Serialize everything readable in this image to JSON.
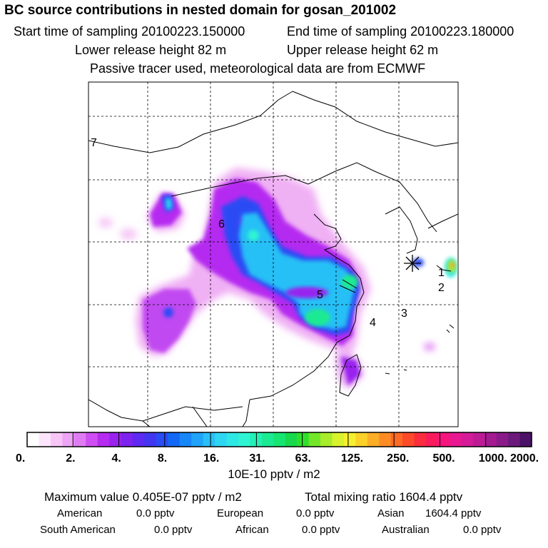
{
  "header": {
    "title": "BC  source contributions in nested domain for gosan_201002",
    "start_time_label": "Start time of sampling 20100223.150000",
    "end_time_label": "End time of sampling 20100223.180000",
    "lower_release_label": "Lower release height   82 m",
    "upper_release_label": "Upper release height   62 m",
    "tracer_note": "Passive tracer used, meteorological data are from ECMWF"
  },
  "map": {
    "region_labels": [
      "1",
      "2",
      "3",
      "4",
      "5",
      "6",
      "7"
    ],
    "receptor_marker": "asterisk-icon"
  },
  "colorbar": {
    "tick_labels": [
      "0.",
      "2.",
      "4.",
      "8.",
      "16.",
      "31.",
      "63.",
      "125.",
      "250.",
      "500.",
      "1000.",
      "2000."
    ],
    "colors": [
      "#ffffff",
      "#fde6fc",
      "#f7c6f6",
      "#eea5f5",
      "#e07cf3",
      "#cf4ef2",
      "#b52cf0",
      "#9922ee",
      "#7e22ef",
      "#5e29f2",
      "#4336f1",
      "#2a4cf4",
      "#1368f5",
      "#1786f8",
      "#20a3f8",
      "#28bff6",
      "#2ed6f2",
      "#2ee8e5",
      "#2ff4d3",
      "#25f0b5",
      "#1bea92",
      "#17e572",
      "#18d84c",
      "#30df2c",
      "#73e62a",
      "#a9ec2b",
      "#d8f22e",
      "#f6ef2e",
      "#fbd129",
      "#fcae26",
      "#fd8c25",
      "#fd6a25",
      "#fd4a2a",
      "#fb2c3d",
      "#f91b5c",
      "#f5157c",
      "#e91791",
      "#d41a97",
      "#bd1b96",
      "#a51a91",
      "#8a1a8a",
      "#6c197c",
      "#4b1267"
    ],
    "unit_label": "10E-10 pptv / m2"
  },
  "stats": {
    "max_value": "Maximum value  0.405E-07 pptv / m2",
    "total_mixing_ratio": "Total mixing ratio     1604.4 pptv",
    "american_label": "American",
    "american_value": "0.0 pptv",
    "european_label": "European",
    "european_value": "0.0 pptv",
    "asian_label": "Asian",
    "asian_value": "1604.4 pptv",
    "south_american_label": "South American",
    "south_american_value": "0.0 pptv",
    "african_label": "African",
    "african_value": "0.0 pptv",
    "australian_label": "Australian",
    "australian_value": "0.0 pptv"
  }
}
